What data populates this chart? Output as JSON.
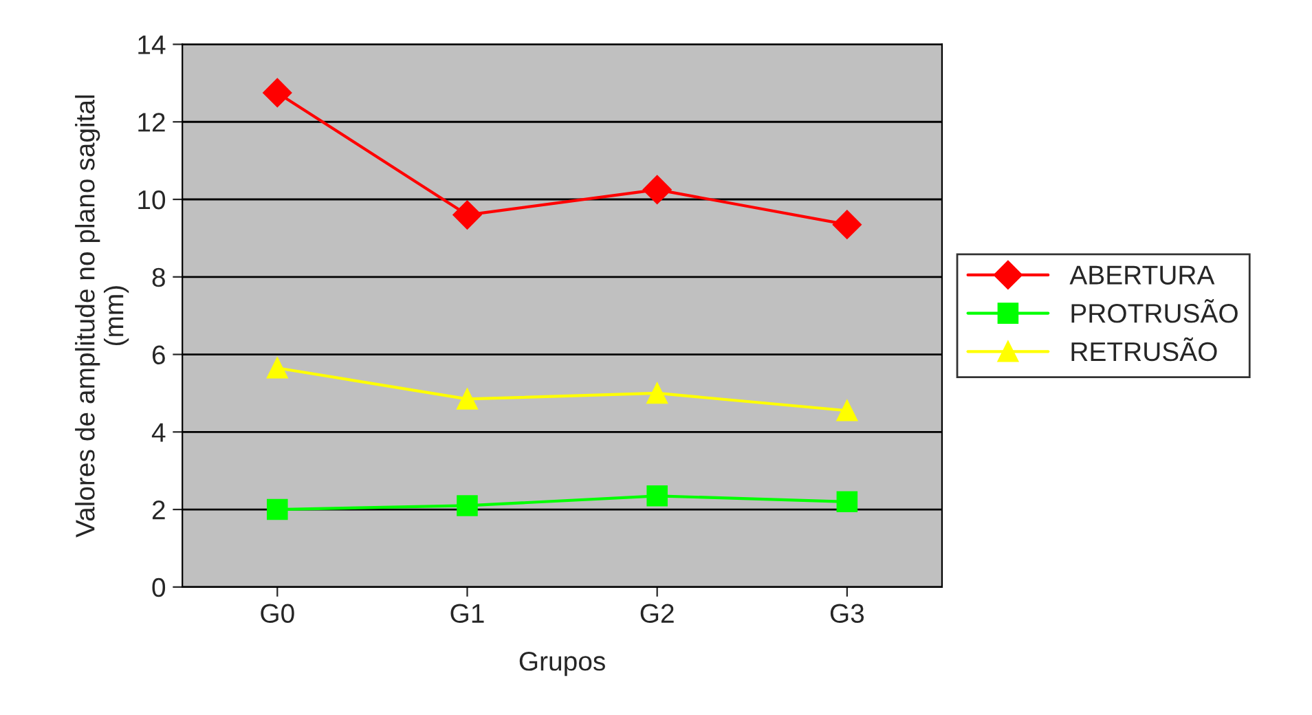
{
  "chart_data": {
    "type": "line",
    "xlabel": "Grupos",
    "ylabel": "Valores de amplitude no plano sagital\n(mm)",
    "categories": [
      "G0",
      "G1",
      "G2",
      "G3"
    ],
    "series": [
      {
        "name": "ABERTURA",
        "color": "#ff0000",
        "marker": "diamond",
        "values": [
          12.75,
          9.6,
          10.25,
          9.35
        ]
      },
      {
        "name": "PROTRUSÃO",
        "color": "#00ff00",
        "marker": "square",
        "values": [
          2.0,
          2.1,
          2.35,
          2.2
        ]
      },
      {
        "name": "RETRUSÃO",
        "color": "#ffff00",
        "marker": "triangle",
        "values": [
          5.65,
          4.85,
          5.0,
          4.55
        ]
      }
    ],
    "ylim": [
      0,
      14
    ],
    "yticks": [
      0,
      2,
      4,
      6,
      8,
      10,
      12,
      14
    ],
    "grid": "y",
    "legend": "right",
    "line_style": "solid"
  }
}
